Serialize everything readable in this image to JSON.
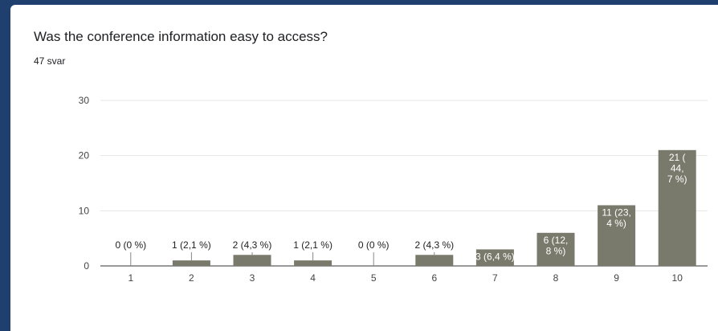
{
  "question": "Was the conference information easy to access?",
  "response_count": "47 svar",
  "chart_data": {
    "type": "bar",
    "categories": [
      "1",
      "2",
      "3",
      "4",
      "5",
      "6",
      "7",
      "8",
      "9",
      "10"
    ],
    "values": [
      0,
      1,
      2,
      1,
      0,
      2,
      3,
      6,
      11,
      21
    ],
    "data_labels": [
      [
        "0 (0 %)"
      ],
      [
        "1 (2,1 %)"
      ],
      [
        "2 (4,3 %)"
      ],
      [
        "1 (2,1 %)"
      ],
      [
        "0 (0 %)"
      ],
      [
        "2 (4,3 %)"
      ],
      [
        "3 (6,4 %)"
      ],
      [
        "6 (12,",
        "8 %)"
      ],
      [
        "11 (23,",
        "4 %)"
      ],
      [
        "21 (",
        "44,",
        "7 %)"
      ]
    ],
    "y_ticks": [
      "0",
      "10",
      "20",
      "30"
    ],
    "ylim": [
      0,
      30
    ],
    "grid": true,
    "bar_color": "#7a7a6c",
    "title": "",
    "xlabel": "",
    "ylabel": ""
  }
}
